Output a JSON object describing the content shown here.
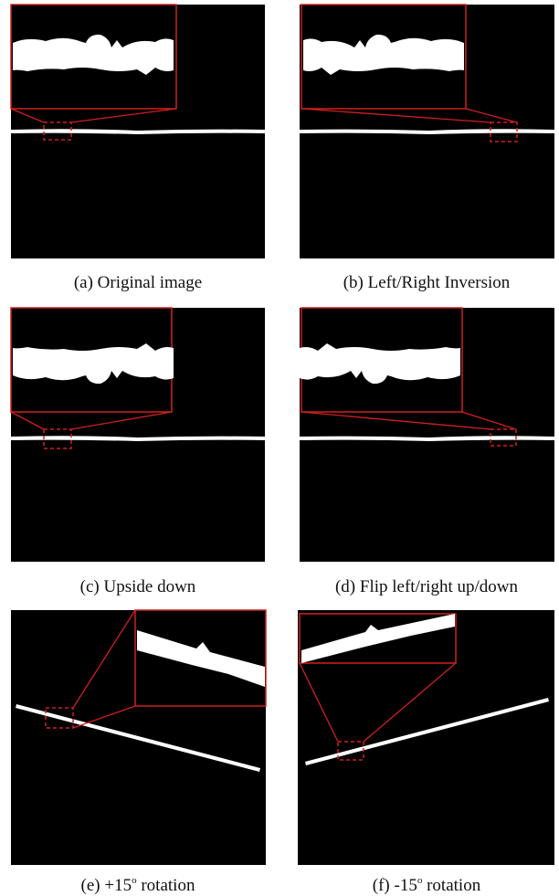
{
  "panels": [
    {
      "caption": "(a) Original image"
    },
    {
      "caption": "(b) Left/Right Inversion"
    },
    {
      "caption": "(c) Upside down"
    },
    {
      "caption": "(d) Flip left/right up/down"
    },
    {
      "caption": [
        "(e) +15",
        "o",
        " rotation"
      ]
    },
    {
      "caption": [
        "(f) -15",
        "o",
        " rotation"
      ]
    }
  ]
}
